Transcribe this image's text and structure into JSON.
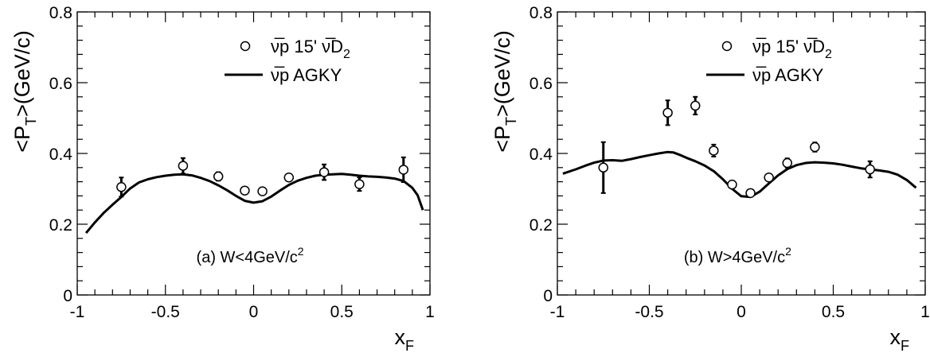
{
  "chart_data": [
    {
      "type": "scatter",
      "panel": "a",
      "annotation": "(a) W<4GeV/c",
      "annotation_sup": "2",
      "xlabel": "x",
      "xlabel_sub": "F",
      "ylabel": "<P",
      "ylabel_sub": "T",
      "ylabel_rest": ">(GeV/c)",
      "xlim": [
        -1,
        1
      ],
      "ylim": [
        0,
        0.8
      ],
      "x_ticks": [
        -1,
        -0.5,
        0,
        0.5,
        1
      ],
      "x_tick_labels": [
        "-1",
        "-0.5",
        "0",
        "0.5",
        "1"
      ],
      "y_ticks": [
        0,
        0.2,
        0.4,
        0.6,
        0.8
      ],
      "y_tick_labels": [
        "0",
        "0.2",
        "0.4",
        "0.6",
        "0.8"
      ],
      "legend_placement": "top-right",
      "series": [
        {
          "name": "ν̅p 15' ν̅D",
          "name_sub": "2",
          "kind": "points",
          "points": [
            {
              "x": -0.75,
              "y": 0.305,
              "err": 0.027
            },
            {
              "x": -0.4,
              "y": 0.365,
              "err": 0.022
            },
            {
              "x": -0.2,
              "y": 0.335,
              "err": 0.012
            },
            {
              "x": -0.05,
              "y": 0.295,
              "err": 0.006
            },
            {
              "x": 0.05,
              "y": 0.293,
              "err": 0.006
            },
            {
              "x": 0.2,
              "y": 0.332,
              "err": 0.006
            },
            {
              "x": 0.4,
              "y": 0.347,
              "err": 0.022
            },
            {
              "x": 0.6,
              "y": 0.313,
              "err": 0.019
            },
            {
              "x": 0.85,
              "y": 0.354,
              "err": 0.035
            }
          ]
        },
        {
          "name": "ν̅p AGKY",
          "kind": "line",
          "x": [
            -0.95,
            -0.9,
            -0.85,
            -0.8,
            -0.75,
            -0.7,
            -0.65,
            -0.6,
            -0.55,
            -0.5,
            -0.45,
            -0.4,
            -0.35,
            -0.3,
            -0.25,
            -0.2,
            -0.15,
            -0.1,
            -0.05,
            0.0,
            0.05,
            0.1,
            0.15,
            0.2,
            0.25,
            0.3,
            0.35,
            0.4,
            0.45,
            0.5,
            0.55,
            0.6,
            0.65,
            0.7,
            0.75,
            0.8,
            0.85,
            0.9,
            0.93,
            0.96
          ],
          "y": [
            0.175,
            0.205,
            0.232,
            0.255,
            0.277,
            0.301,
            0.318,
            0.327,
            0.333,
            0.337,
            0.34,
            0.341,
            0.338,
            0.331,
            0.322,
            0.31,
            0.296,
            0.28,
            0.266,
            0.261,
            0.265,
            0.278,
            0.295,
            0.311,
            0.323,
            0.331,
            0.337,
            0.34,
            0.341,
            0.342,
            0.34,
            0.337,
            0.335,
            0.334,
            0.332,
            0.329,
            0.322,
            0.303,
            0.282,
            0.24
          ]
        }
      ]
    },
    {
      "type": "scatter",
      "panel": "b",
      "annotation": "(b) W>4GeV/c",
      "annotation_sup": "2",
      "xlabel": "x",
      "xlabel_sub": "F",
      "ylabel": "<P",
      "ylabel_sub": "T",
      "ylabel_rest": ">(GeV/c)",
      "xlim": [
        -1,
        1
      ],
      "ylim": [
        0,
        0.8
      ],
      "x_ticks": [
        -1,
        -0.5,
        0,
        0.5,
        1
      ],
      "x_tick_labels": [
        "-1",
        "-0.5",
        "0",
        "0.5",
        "1"
      ],
      "y_ticks": [
        0,
        0.2,
        0.4,
        0.6,
        0.8
      ],
      "y_tick_labels": [
        "0",
        "0.2",
        "0.4",
        "0.6",
        "0.8"
      ],
      "legend_placement": "top-right",
      "series": [
        {
          "name": "ν̅p 15' ν̅D",
          "name_sub": "2",
          "kind": "points",
          "points": [
            {
              "x": -0.75,
              "y": 0.36,
              "err": 0.072
            },
            {
              "x": -0.4,
              "y": 0.515,
              "err": 0.035
            },
            {
              "x": -0.25,
              "y": 0.535,
              "err": 0.025
            },
            {
              "x": -0.15,
              "y": 0.408,
              "err": 0.017
            },
            {
              "x": -0.05,
              "y": 0.312,
              "err": 0.01
            },
            {
              "x": 0.05,
              "y": 0.288,
              "err": 0.01
            },
            {
              "x": 0.15,
              "y": 0.332,
              "err": 0.006
            },
            {
              "x": 0.25,
              "y": 0.373,
              "err": 0.013
            },
            {
              "x": 0.4,
              "y": 0.418,
              "err": 0.013
            },
            {
              "x": 0.7,
              "y": 0.355,
              "err": 0.023
            }
          ]
        },
        {
          "name": "ν̅p AGKY",
          "kind": "line",
          "x": [
            -0.97,
            -0.9,
            -0.85,
            -0.8,
            -0.75,
            -0.7,
            -0.65,
            -0.6,
            -0.55,
            -0.5,
            -0.45,
            -0.4,
            -0.37,
            -0.33,
            -0.3,
            -0.25,
            -0.2,
            -0.15,
            -0.1,
            -0.05,
            0.0,
            0.05,
            0.1,
            0.15,
            0.2,
            0.25,
            0.3,
            0.35,
            0.4,
            0.45,
            0.5,
            0.55,
            0.6,
            0.65,
            0.7,
            0.75,
            0.8,
            0.85,
            0.9,
            0.95
          ],
          "y": [
            0.343,
            0.355,
            0.365,
            0.374,
            0.38,
            0.381,
            0.379,
            0.384,
            0.39,
            0.395,
            0.4,
            0.404,
            0.403,
            0.395,
            0.388,
            0.378,
            0.366,
            0.35,
            0.327,
            0.3,
            0.279,
            0.277,
            0.292,
            0.315,
            0.338,
            0.356,
            0.367,
            0.373,
            0.375,
            0.374,
            0.372,
            0.368,
            0.363,
            0.358,
            0.355,
            0.352,
            0.348,
            0.34,
            0.325,
            0.303
          ]
        }
      ]
    }
  ]
}
